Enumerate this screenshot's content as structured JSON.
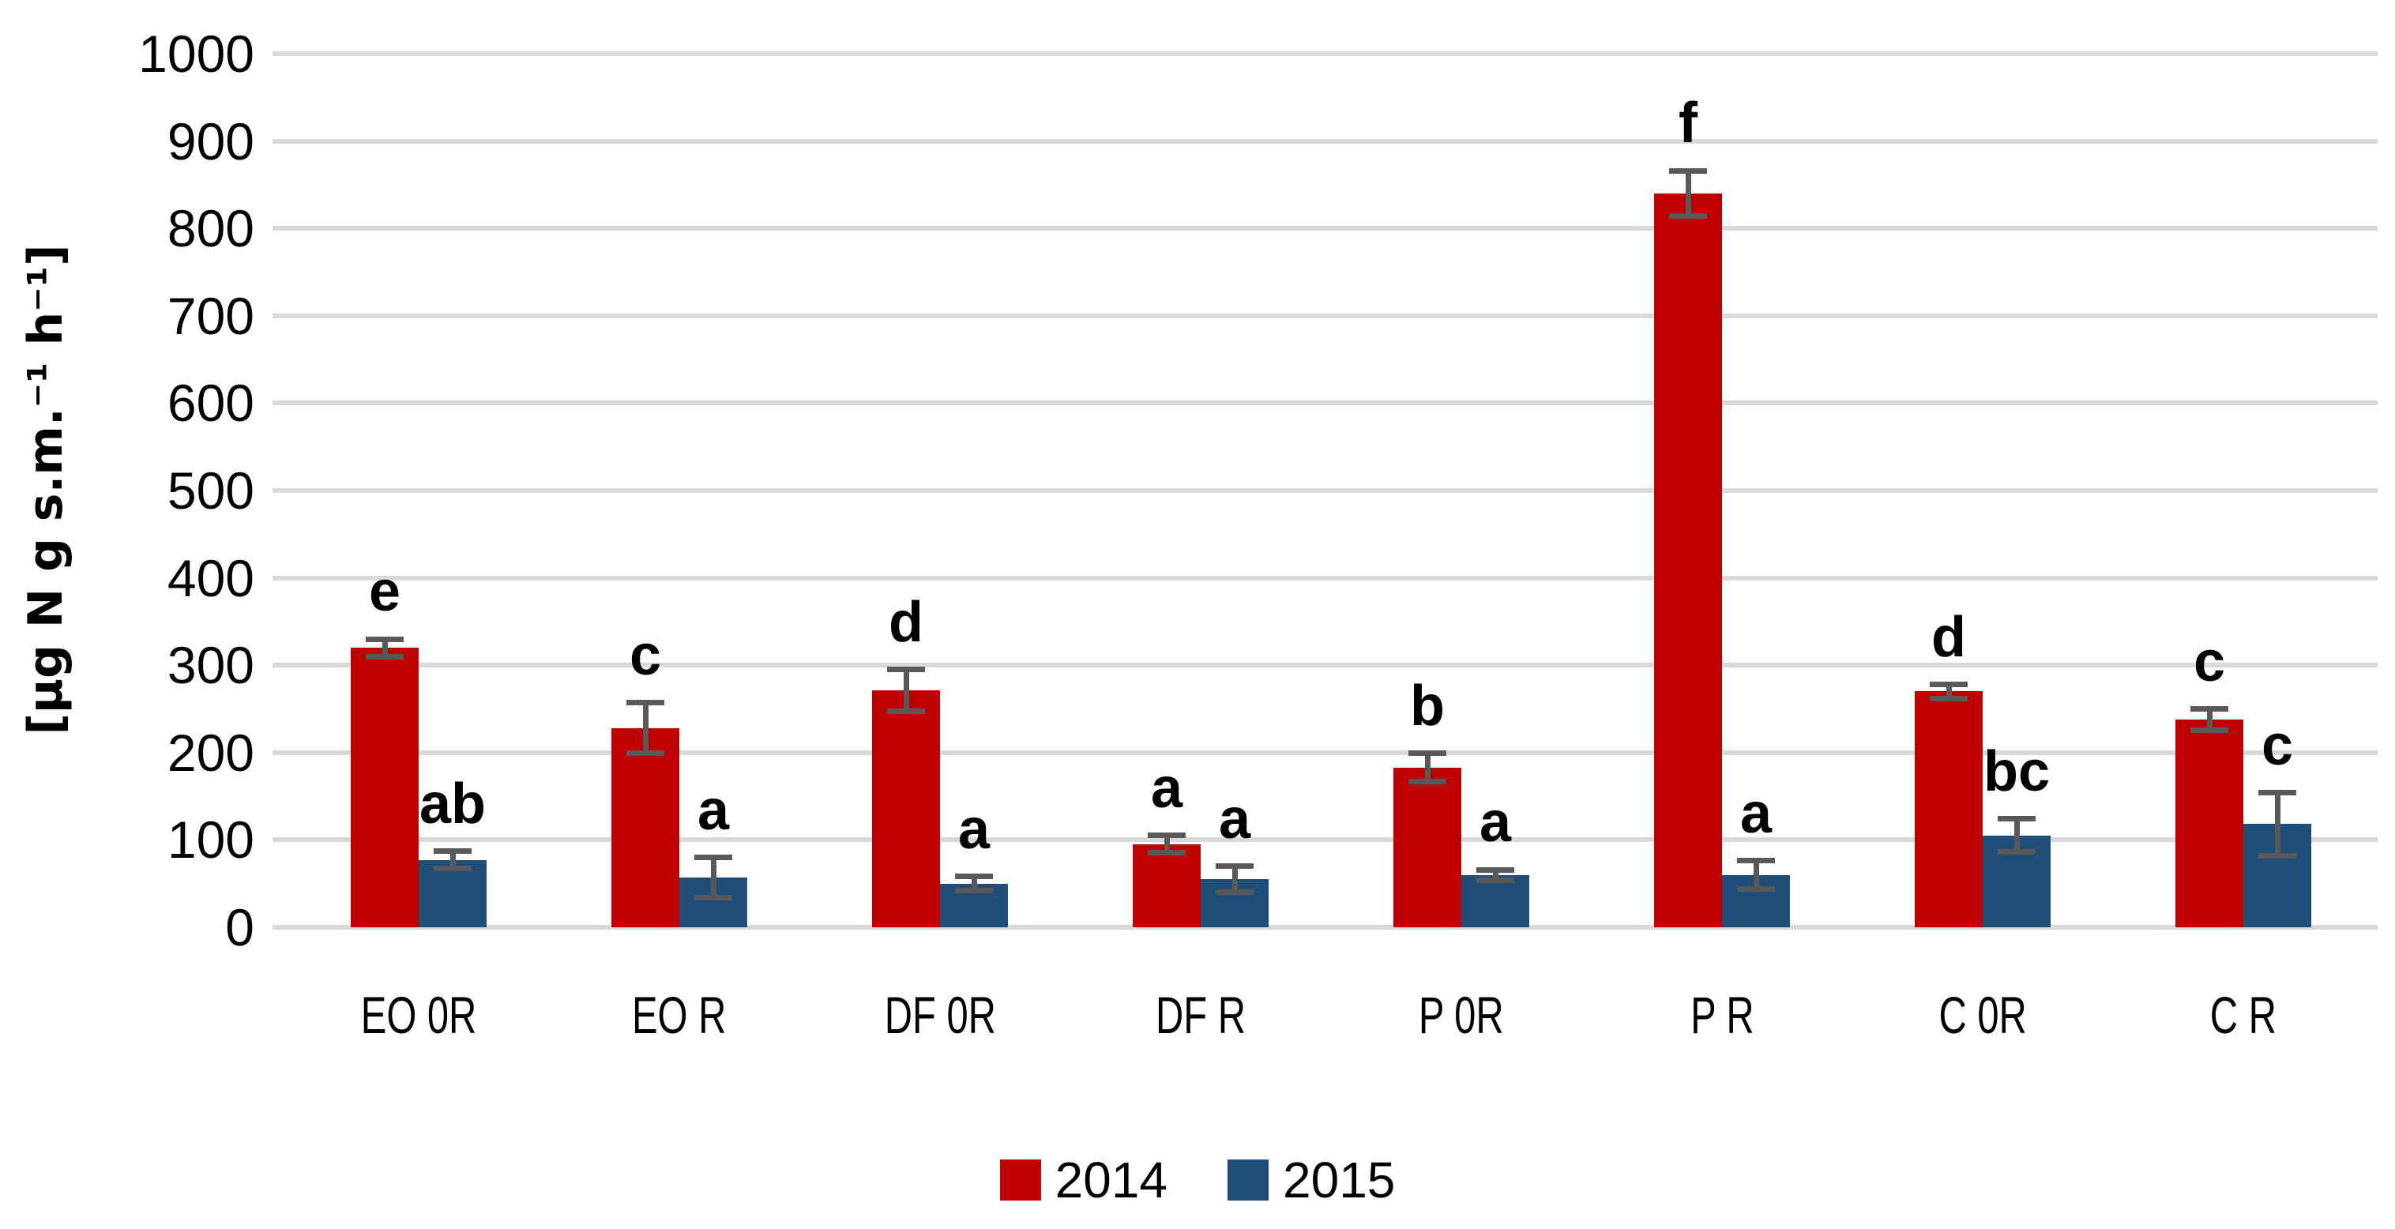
{
  "chart_data": {
    "type": "bar",
    "title": "",
    "ylabel": "[µg N g s.m.⁻¹ h⁻¹]",
    "xlabel": "",
    "categories": [
      "EO 0R",
      "EO R",
      "DF 0R",
      "DF R",
      "P 0R",
      "P R",
      "C 0R",
      "C R"
    ],
    "series": [
      {
        "name": "2014",
        "color": "#C00000",
        "values": [
          320,
          228,
          271,
          95,
          183,
          840,
          270,
          238
        ],
        "errors": [
          10,
          29,
          24,
          10,
          16,
          26,
          8,
          12
        ],
        "letters": [
          "e",
          "c",
          "d",
          "a",
          "b",
          "f",
          "d",
          "c"
        ]
      },
      {
        "name": "2015",
        "color": "#1F4E79",
        "values": [
          77,
          57,
          50,
          55,
          60,
          60,
          105,
          118
        ],
        "errors": [
          10,
          23,
          8,
          15,
          6,
          16,
          19,
          36
        ],
        "letters": [
          "ab",
          "a",
          "a",
          "a",
          "a",
          "a",
          "bc",
          "c"
        ]
      }
    ],
    "ylim": [
      0,
      1000
    ],
    "ytick_step": 100,
    "yticks": [
      "0",
      "100",
      "200",
      "300",
      "400",
      "500",
      "600",
      "700",
      "800",
      "900",
      "1000"
    ],
    "grid": true,
    "legend_position": "bottom"
  },
  "legend": {
    "items": [
      {
        "label": "2014",
        "color": "#C00000"
      },
      {
        "label": "2015",
        "color": "#1F4E79"
      }
    ]
  },
  "colors": {
    "background": "#FFFFFF",
    "gridline": "#D9D9D9",
    "error_bar": "#595959",
    "text": "#000000"
  }
}
